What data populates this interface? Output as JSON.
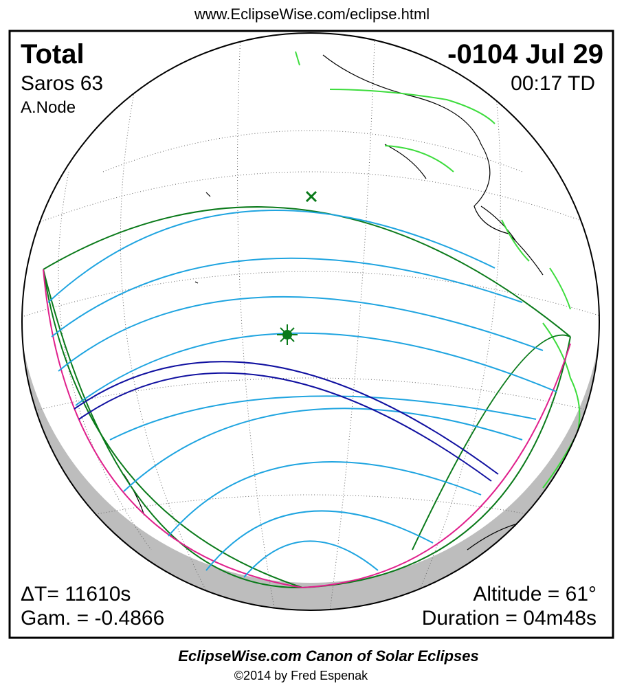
{
  "header": {
    "url": "www.EclipseWise.com/eclipse.html"
  },
  "panel": {
    "eclipse_type": "Total",
    "saros": "Saros  63",
    "node": "A.Node",
    "date": "-0104 Jul 29",
    "time": "00:17 TD",
    "delta_t": "ΔT=  11610s",
    "gamma": "Gam. = -0.4866",
    "altitude": "Altitude = 61°",
    "duration": "Duration = 04m48s"
  },
  "footer": {
    "title": "EclipseWise.com Canon of Solar Eclipses",
    "credit": "©2014 by Fred Espenak"
  }
}
